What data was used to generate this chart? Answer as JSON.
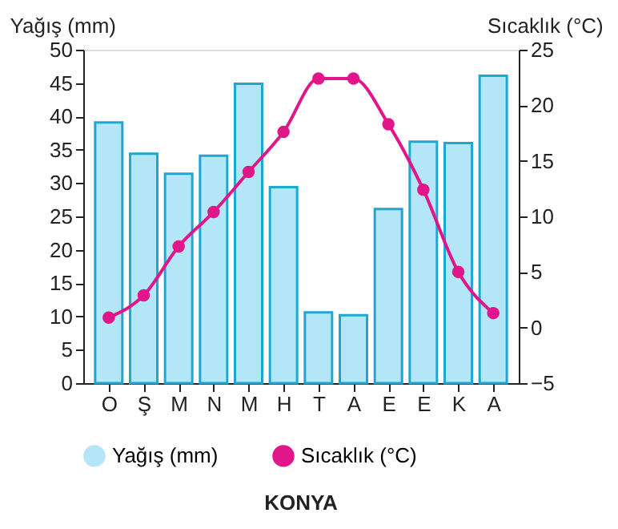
{
  "chart_data": {
    "type": "bar",
    "categories": [
      "O",
      "Ş",
      "M",
      "N",
      "M",
      "H",
      "T",
      "A",
      "E",
      "E",
      "K",
      "A"
    ],
    "ylabel": "Yağış (mm)",
    "y2label": "Sıcaklık (°C)",
    "ylim": [
      0,
      50
    ],
    "yticks": [
      0,
      5,
      10,
      15,
      20,
      25,
      30,
      35,
      40,
      45,
      50
    ],
    "y2lim": [
      -5,
      25
    ],
    "y2ticks": [
      -5,
      0,
      5,
      10,
      15,
      20,
      25
    ],
    "series": [
      {
        "name": "Yağış (mm)",
        "color": "#b3e6f7",
        "values": [
          39.1,
          34.4,
          31.4,
          34.1,
          44.9,
          29.4,
          10.6,
          10.2,
          26.1,
          36.2,
          36.0,
          46.1
        ]
      },
      {
        "name": "Sıcaklık (°C)",
        "type": "line",
        "axis": "y2",
        "color": "#e0168a",
        "marker": "circle",
        "values": [
          0.9,
          2.9,
          7.3,
          10.4,
          14.0,
          17.6,
          22.4,
          22.4,
          18.3,
          12.4,
          5.0,
          1.3
        ]
      }
    ],
    "legend": "bottom",
    "grid": false,
    "annotations": [
      "KONYA"
    ]
  }
}
